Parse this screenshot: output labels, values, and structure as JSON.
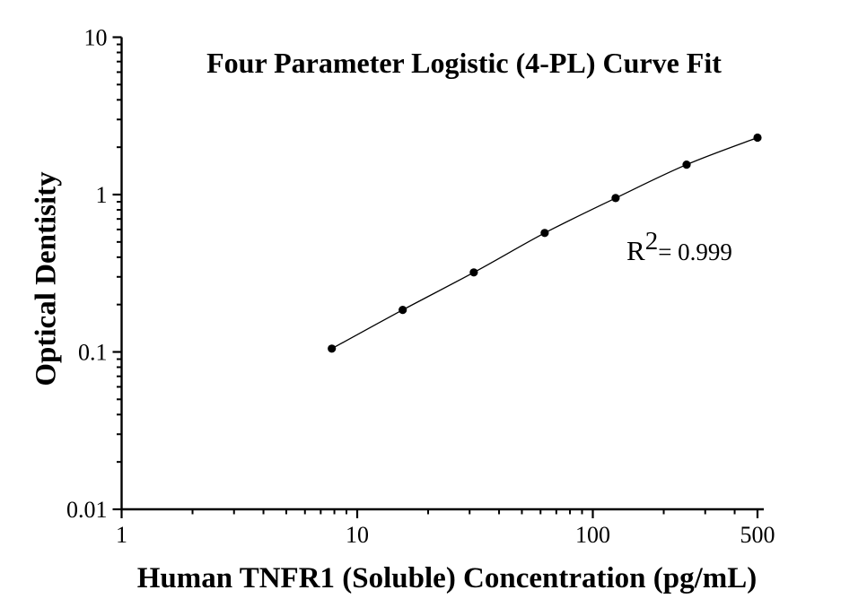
{
  "chart": {
    "background": "#ffffff"
  },
  "chart_data": {
    "type": "line",
    "title": "Four Parameter Logistic (4-PL) Curve Fit",
    "xlabel": "Human TNFR1 (Soluble) Concentration (pg/mL)",
    "ylabel": "Optical Dentisity",
    "x": [
      7.8,
      15.6,
      31.25,
      62.5,
      125,
      250,
      500
    ],
    "y": [
      0.105,
      0.185,
      0.32,
      0.57,
      0.95,
      1.55,
      2.3
    ],
    "x_scale": "log",
    "y_scale": "log",
    "xlim": [
      1,
      533
    ],
    "ylim": [
      0.01,
      10
    ],
    "x_ticks": {
      "values": [
        1,
        10,
        100,
        500
      ],
      "labels": [
        "1",
        "10",
        "100",
        "500"
      ]
    },
    "y_ticks": {
      "values": [
        10,
        1,
        0.1,
        0.01
      ],
      "labels": [
        "10",
        "1",
        "0.1",
        "0.01"
      ]
    },
    "grid": false,
    "legend": "none",
    "marker": "circle",
    "annotation": {
      "text": "R²= 0.999",
      "r_base": "R",
      "r_sup": "2",
      "r_rest": "= 0.999",
      "r_squared": 0.999
    },
    "colors": {
      "line": "#000000",
      "marker": "#000000",
      "axis": "#000000",
      "text": "#000000",
      "background": "#ffffff"
    }
  }
}
